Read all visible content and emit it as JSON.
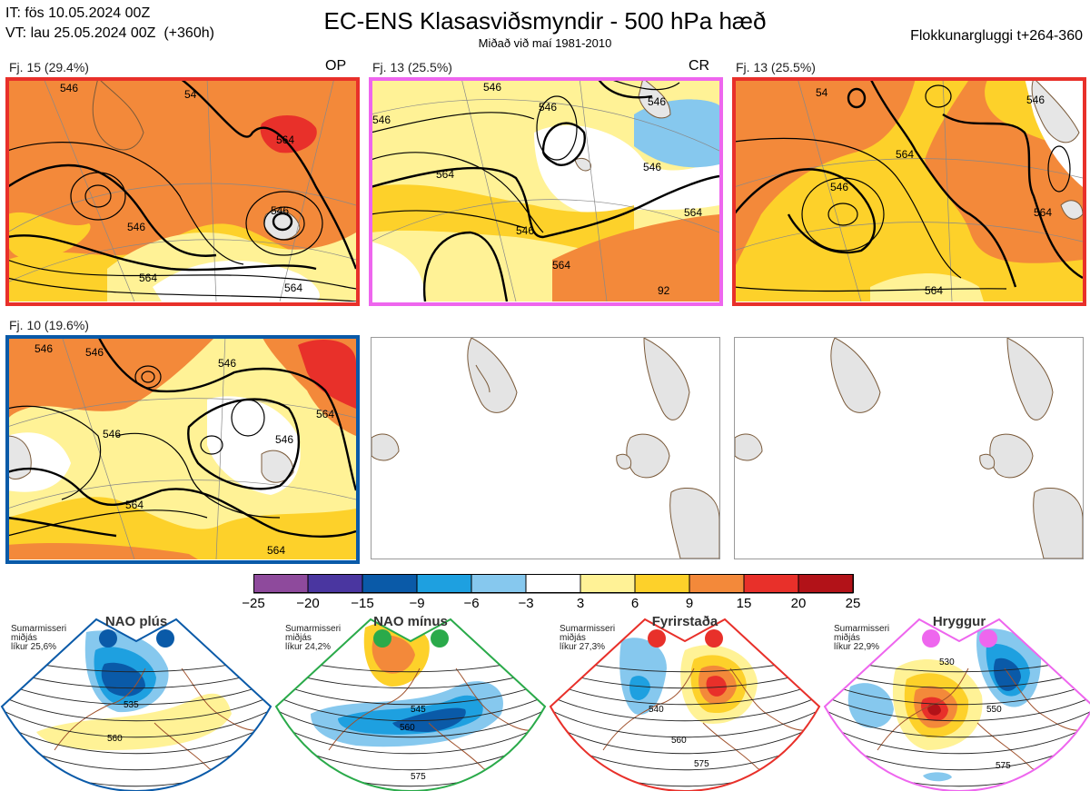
{
  "header": {
    "issue_time": "IT: fös 10.05.2024 00Z",
    "valid_time": "VT: lau 25.05.2024 00Z  (+360h)",
    "title": "EC-ENS Klasasviðsmyndir - 500 hPa hæð",
    "subtitle": "Miðað við maí 1981-2010",
    "window": "Flokkunargluggi t+264-360"
  },
  "panels": [
    {
      "label": "Fj. 15 (29.4%)",
      "tag": "OP",
      "border_color": "#e8302a"
    },
    {
      "label": "Fj. 13 (25.5%)",
      "tag": "CR",
      "border_color": "#ee66ee"
    },
    {
      "label": "Fj. 13 (25.5%)",
      "tag": "",
      "border_color": "#e8302a"
    },
    {
      "label": "Fj. 10 (19.6%)",
      "tag": "",
      "border_color": "#0a5aa8"
    },
    {
      "label": "",
      "tag": "",
      "border_color": "#9a9a9a"
    },
    {
      "label": "",
      "tag": "",
      "border_color": "#9a9a9a"
    }
  ],
  "contour_labels": {
    "p1": [
      "546",
      "564",
      "546",
      "54",
      "546",
      "564",
      "564"
    ],
    "p2": [
      "546",
      "546",
      "564",
      "546",
      "546",
      "564",
      "564",
      "546",
      "92",
      "546"
    ],
    "p3": [
      "54",
      "546",
      "564",
      "546",
      "564",
      "564"
    ],
    "p4": [
      "546",
      "546",
      "546",
      "564",
      "546",
      "564",
      "564",
      "546"
    ]
  },
  "colorbar": {
    "ticks": [
      "−25",
      "−20",
      "−15",
      "−9",
      "−6",
      "−3",
      "3",
      "6",
      "9",
      "15",
      "20",
      "25"
    ],
    "colors": [
      "#8e4a9c",
      "#4a36a0",
      "#0a5aa8",
      "#1ea0e0",
      "#86c8ee",
      "#ffffff",
      "#fff296",
      "#fdd12a",
      "#f3893a",
      "#e8302a",
      "#b21218"
    ]
  },
  "regimes": [
    {
      "title": "NAO plús",
      "info": [
        "Sumarmisseri",
        "miðjás",
        "líkur 25,6%"
      ],
      "color": "#0a5aa8",
      "labels": [
        "535",
        "560"
      ]
    },
    {
      "title": "NAO mínus",
      "info": [
        "Sumarmisseri",
        "miðjás",
        "líkur 24,2%"
      ],
      "color": "#2aaa4a",
      "labels": [
        "545",
        "560",
        "575"
      ]
    },
    {
      "title": "Fyrirstaða",
      "info": [
        "Sumarmisseri",
        "miðjás",
        "líkur 27,3%"
      ],
      "color": "#e8302a",
      "labels": [
        "540",
        "560",
        "575"
      ]
    },
    {
      "title": "Hryggur",
      "info": [
        "Sumarmisseri",
        "miðjás",
        "líkur 22,9%"
      ],
      "color": "#ee66ee",
      "labels": [
        "530",
        "550",
        "575"
      ]
    }
  ]
}
